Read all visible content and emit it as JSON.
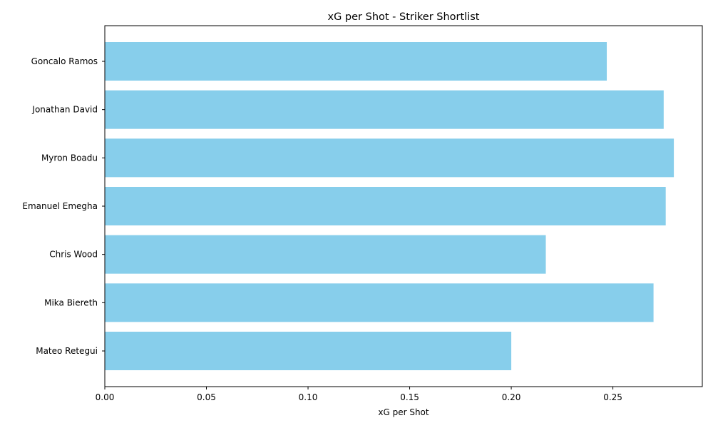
{
  "chart_data": {
    "type": "bar",
    "orientation": "horizontal",
    "title": "xG per Shot - Striker Shortlist",
    "xlabel": "xG per Shot",
    "ylabel": "",
    "categories": [
      "Goncalo Ramos",
      "Jonathan David",
      "Myron Boadu",
      "Emanuel Emegha",
      "Chris Wood",
      "Mika Biereth",
      "Mateo Retegui"
    ],
    "values": [
      0.247,
      0.275,
      0.28,
      0.276,
      0.217,
      0.27,
      0.2
    ],
    "xlim": [
      0.0,
      0.294
    ],
    "x_ticks": [
      "0.00",
      "0.05",
      "0.10",
      "0.15",
      "0.20",
      "0.25"
    ],
    "grid": false,
    "bar_color": "#87ceeb"
  }
}
